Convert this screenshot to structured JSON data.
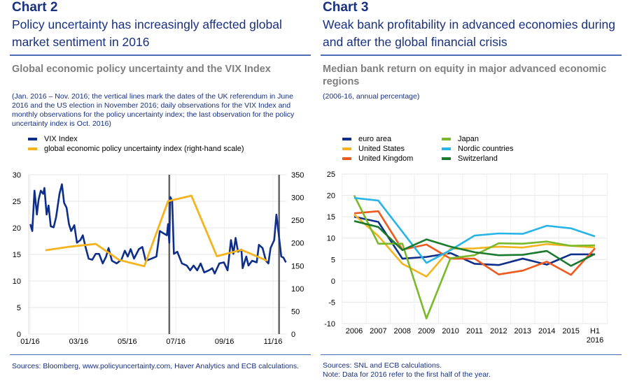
{
  "left": {
    "chart_no": "Chart 2",
    "title_line1": "Policy uncertainty has increasingly affected global",
    "title_line2": "market sentiment in 2016",
    "subtitle": "Global economic policy uncertainty and the VIX Index",
    "note": "(Jan. 2016 – Nov. 2016; the vertical lines mark the dates of the UK referendum in June 2016 and the US election in November 2016; daily observations for the VIX Index and monthly observations for the policy uncertainty index; the last observation for the policy uncertainty index is Oct. 2016)",
    "sources": "Sources: Bloomberg, www.policyuncertainty.com, Haver Analytics and ECB calculations."
  },
  "right": {
    "chart_no": "Chart 3",
    "title_line1": "Weak bank profitability in advanced economies during",
    "title_line2": "and after the global financial crisis",
    "subtitle": "Median bank return on equity in major advanced economic regions",
    "note": "(2006-16, annual percentage)",
    "sources_line1": "Sources: SNL and ECB calculations.",
    "sources_line2": "Note: Data for 2016 refer to the first half of the year."
  },
  "chart_data": [
    {
      "type": "line",
      "x_unit": "months since Jan 2016",
      "xlim": [
        0,
        10.55
      ],
      "x_ticks": [
        0,
        2,
        4,
        6,
        8,
        10
      ],
      "x_tick_labels": [
        "01/16",
        "03/16",
        "05/16",
        "07/16",
        "09/16",
        "11/16"
      ],
      "ylim": [
        0,
        30
      ],
      "y_ticks": [
        "0",
        "5",
        "10",
        "15",
        "20",
        "25",
        "30"
      ],
      "y2lim": [
        0,
        350
      ],
      "y2_ticks": [
        "0",
        "50",
        "100",
        "150",
        "200",
        "250",
        "300",
        "350"
      ],
      "grid": true,
      "vertical_lines": [
        5.73,
        10.25
      ],
      "series": [
        {
          "name": "VIX Index",
          "color": "#0e2e8c",
          "axis": "left",
          "x": [
            0.01,
            0.09,
            0.18,
            0.28,
            0.35,
            0.44,
            0.54,
            0.59,
            0.68,
            0.76,
            0.85,
            0.97,
            1.07,
            1.21,
            1.31,
            1.4,
            1.5,
            1.6,
            1.69,
            1.82,
            1.93,
            2.07,
            2.17,
            2.27,
            2.41,
            2.56,
            2.7,
            2.84,
            2.99,
            3.13,
            3.23,
            3.37,
            3.56,
            3.76,
            3.9,
            4.02,
            4.14,
            4.28,
            4.48,
            4.62,
            4.76,
            5.0,
            5.2,
            5.34,
            5.48,
            5.63,
            5.68,
            5.73,
            5.77,
            5.85,
            5.92,
            6.06,
            6.25,
            6.45,
            6.59,
            6.73,
            6.88,
            7.02,
            7.17,
            7.36,
            7.5,
            7.6,
            7.79,
            7.98,
            8.13,
            8.27,
            8.37,
            8.46,
            8.56,
            8.7,
            8.75,
            8.9,
            8.99,
            9.14,
            9.33,
            9.42,
            9.57,
            9.71,
            9.81,
            9.9,
            10.05,
            10.14,
            10.24,
            10.34,
            10.43,
            10.53
          ],
          "y": [
            20.7,
            19.4,
            27,
            22.5,
            25.3,
            27,
            26.4,
            27.5,
            22.5,
            24.2,
            20.3,
            20.1,
            22,
            26.4,
            28.2,
            24.7,
            23.8,
            20.7,
            19.4,
            20.5,
            17.2,
            17.7,
            18.6,
            16.6,
            14.2,
            14,
            15.1,
            15.1,
            13.3,
            14.6,
            16.2,
            13.8,
            13.3,
            14,
            15.7,
            14.6,
            16,
            14.2,
            16,
            16.4,
            13.8,
            14.2,
            14.6,
            19.4,
            19,
            18.6,
            20.7,
            17.2,
            25.8,
            25.1,
            15.1,
            15.5,
            13.3,
            12.9,
            12,
            12.9,
            12,
            13.3,
            11.6,
            12,
            12.4,
            11.4,
            13.3,
            13.5,
            12,
            17.7,
            15.1,
            18.1,
            15.5,
            15.9,
            12.4,
            14.6,
            12.9,
            13.8,
            13.5,
            16.8,
            16.2,
            13.8,
            13.3,
            16.2,
            17.7,
            22.5,
            18.6,
            14.6,
            14.4,
            13.5
          ]
        },
        {
          "name": "global economic policy uncertainty index (right-hand scale)",
          "color": "#f5b31d",
          "axis": "right",
          "x": [
            0.63,
            1.65,
            2.7,
            3.66,
            4.7,
            5.68,
            6.64,
            7.69,
            8.7,
            9.76
          ],
          "y": [
            184,
            192,
            198,
            163,
            149,
            292,
            304,
            171,
            185,
            161
          ]
        }
      ]
    },
    {
      "type": "line",
      "categories": [
        "2006",
        "2007",
        "2008",
        "2009",
        "2010",
        "2011",
        "2012",
        "2013",
        "2014",
        "2015",
        "H1 2016"
      ],
      "ylim": [
        -10,
        25
      ],
      "y_ticks": [
        "-10",
        "-5",
        "0",
        "5",
        "10",
        "15",
        "20",
        "25"
      ],
      "grid": true,
      "legend_position": "top",
      "series": [
        {
          "name": "euro area",
          "color": "#0e2e8c",
          "values": [
            15,
            13.8,
            5.2,
            5.6,
            6.5,
            4,
            3.7,
            5.2,
            3.8,
            6.2,
            6.2
          ]
        },
        {
          "name": "United States",
          "color": "#f5b31d",
          "values": [
            15.5,
            10.5,
            4,
            1,
            7.5,
            7.6,
            8,
            7.8,
            8.6,
            8.2,
            7.8
          ]
        },
        {
          "name": "United Kingdom",
          "color": "#f0591d",
          "values": [
            15.8,
            16.3,
            7.3,
            8.5,
            5.2,
            5.2,
            1.5,
            2.4,
            4.5,
            1.4,
            7.6
          ]
        },
        {
          "name": "Japan",
          "color": "#7ab929",
          "values": [
            20,
            8.7,
            8.7,
            -8.8,
            5.3,
            6,
            8.8,
            8.7,
            9.2,
            8.2,
            8.3
          ]
        },
        {
          "name": "Nordic countries",
          "color": "#27b4e6",
          "values": [
            19.4,
            18.8,
            11.5,
            4.2,
            7.2,
            10.6,
            11.1,
            11,
            12.9,
            12.3,
            10.4
          ]
        },
        {
          "name": "Switzerland",
          "color": "#1a7a2e",
          "values": [
            14,
            12.6,
            7.2,
            9.7,
            8,
            6.7,
            6,
            6.1,
            7,
            3.5,
            6.3
          ]
        }
      ]
    }
  ]
}
